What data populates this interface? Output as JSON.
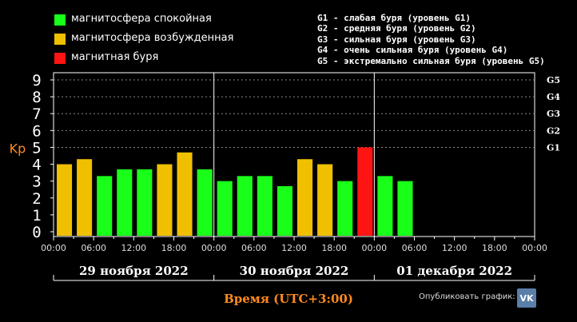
{
  "legend": [
    {
      "label": "магнитосфера спокойная",
      "color": "#19ff19"
    },
    {
      "label": "магнитосфера возбужденная",
      "color": "#f0c000"
    },
    {
      "label": "магнитная буря",
      "color": "#ff1414"
    }
  ],
  "storm_levels": [
    "G1 - слабая буря (уровень G1)",
    "G2 - средняя буря (уровень G2)",
    "G3 - сильная буря (уровень G3)",
    "G4 - очень сильная буря (уровень G4)",
    "G5 - экстремально сильная буря (уровень G5)"
  ],
  "share": {
    "label": "Опубликовать график:",
    "icon": "vk-icon",
    "icon_text": "VK"
  },
  "chart_data": {
    "type": "bar",
    "ylabel": "Kp",
    "xlabel": "Время (UTC+3:00)",
    "ylim": [
      0,
      9
    ],
    "yticks": [
      0,
      1,
      2,
      3,
      4,
      5,
      6,
      7,
      8,
      9
    ],
    "right_axis_labels": [
      {
        "label": "G1",
        "kp": 5
      },
      {
        "label": "G2",
        "kp": 6
      },
      {
        "label": "G3",
        "kp": 7
      },
      {
        "label": "G4",
        "kp": 8
      },
      {
        "label": "G5",
        "kp": 9
      }
    ],
    "xticks": [
      "00:00",
      "06:00",
      "12:00",
      "18:00",
      "00:00",
      "06:00",
      "12:00",
      "18:00",
      "00:00",
      "06:00",
      "12:00",
      "18:00",
      "00:00"
    ],
    "days": [
      "29 ноября 2022",
      "30 ноября 2022",
      "01 декабря 2022"
    ],
    "grid": true,
    "interval_hours": 3,
    "values": [
      4.0,
      4.3,
      3.3,
      3.7,
      3.7,
      4.0,
      4.7,
      3.7,
      3.0,
      3.3,
      3.3,
      2.7,
      4.3,
      4.0,
      3.0,
      5.0,
      3.3,
      3.0
    ],
    "bar_status": [
      "disturbed",
      "disturbed",
      "quiet",
      "quiet",
      "quiet",
      "disturbed",
      "disturbed",
      "quiet",
      "quiet",
      "quiet",
      "quiet",
      "quiet",
      "disturbed",
      "disturbed",
      "quiet",
      "storm",
      "quiet",
      "quiet"
    ],
    "status_colors": {
      "quiet": "#19ff19",
      "disturbed": "#f0c000",
      "storm": "#ff1414"
    }
  }
}
